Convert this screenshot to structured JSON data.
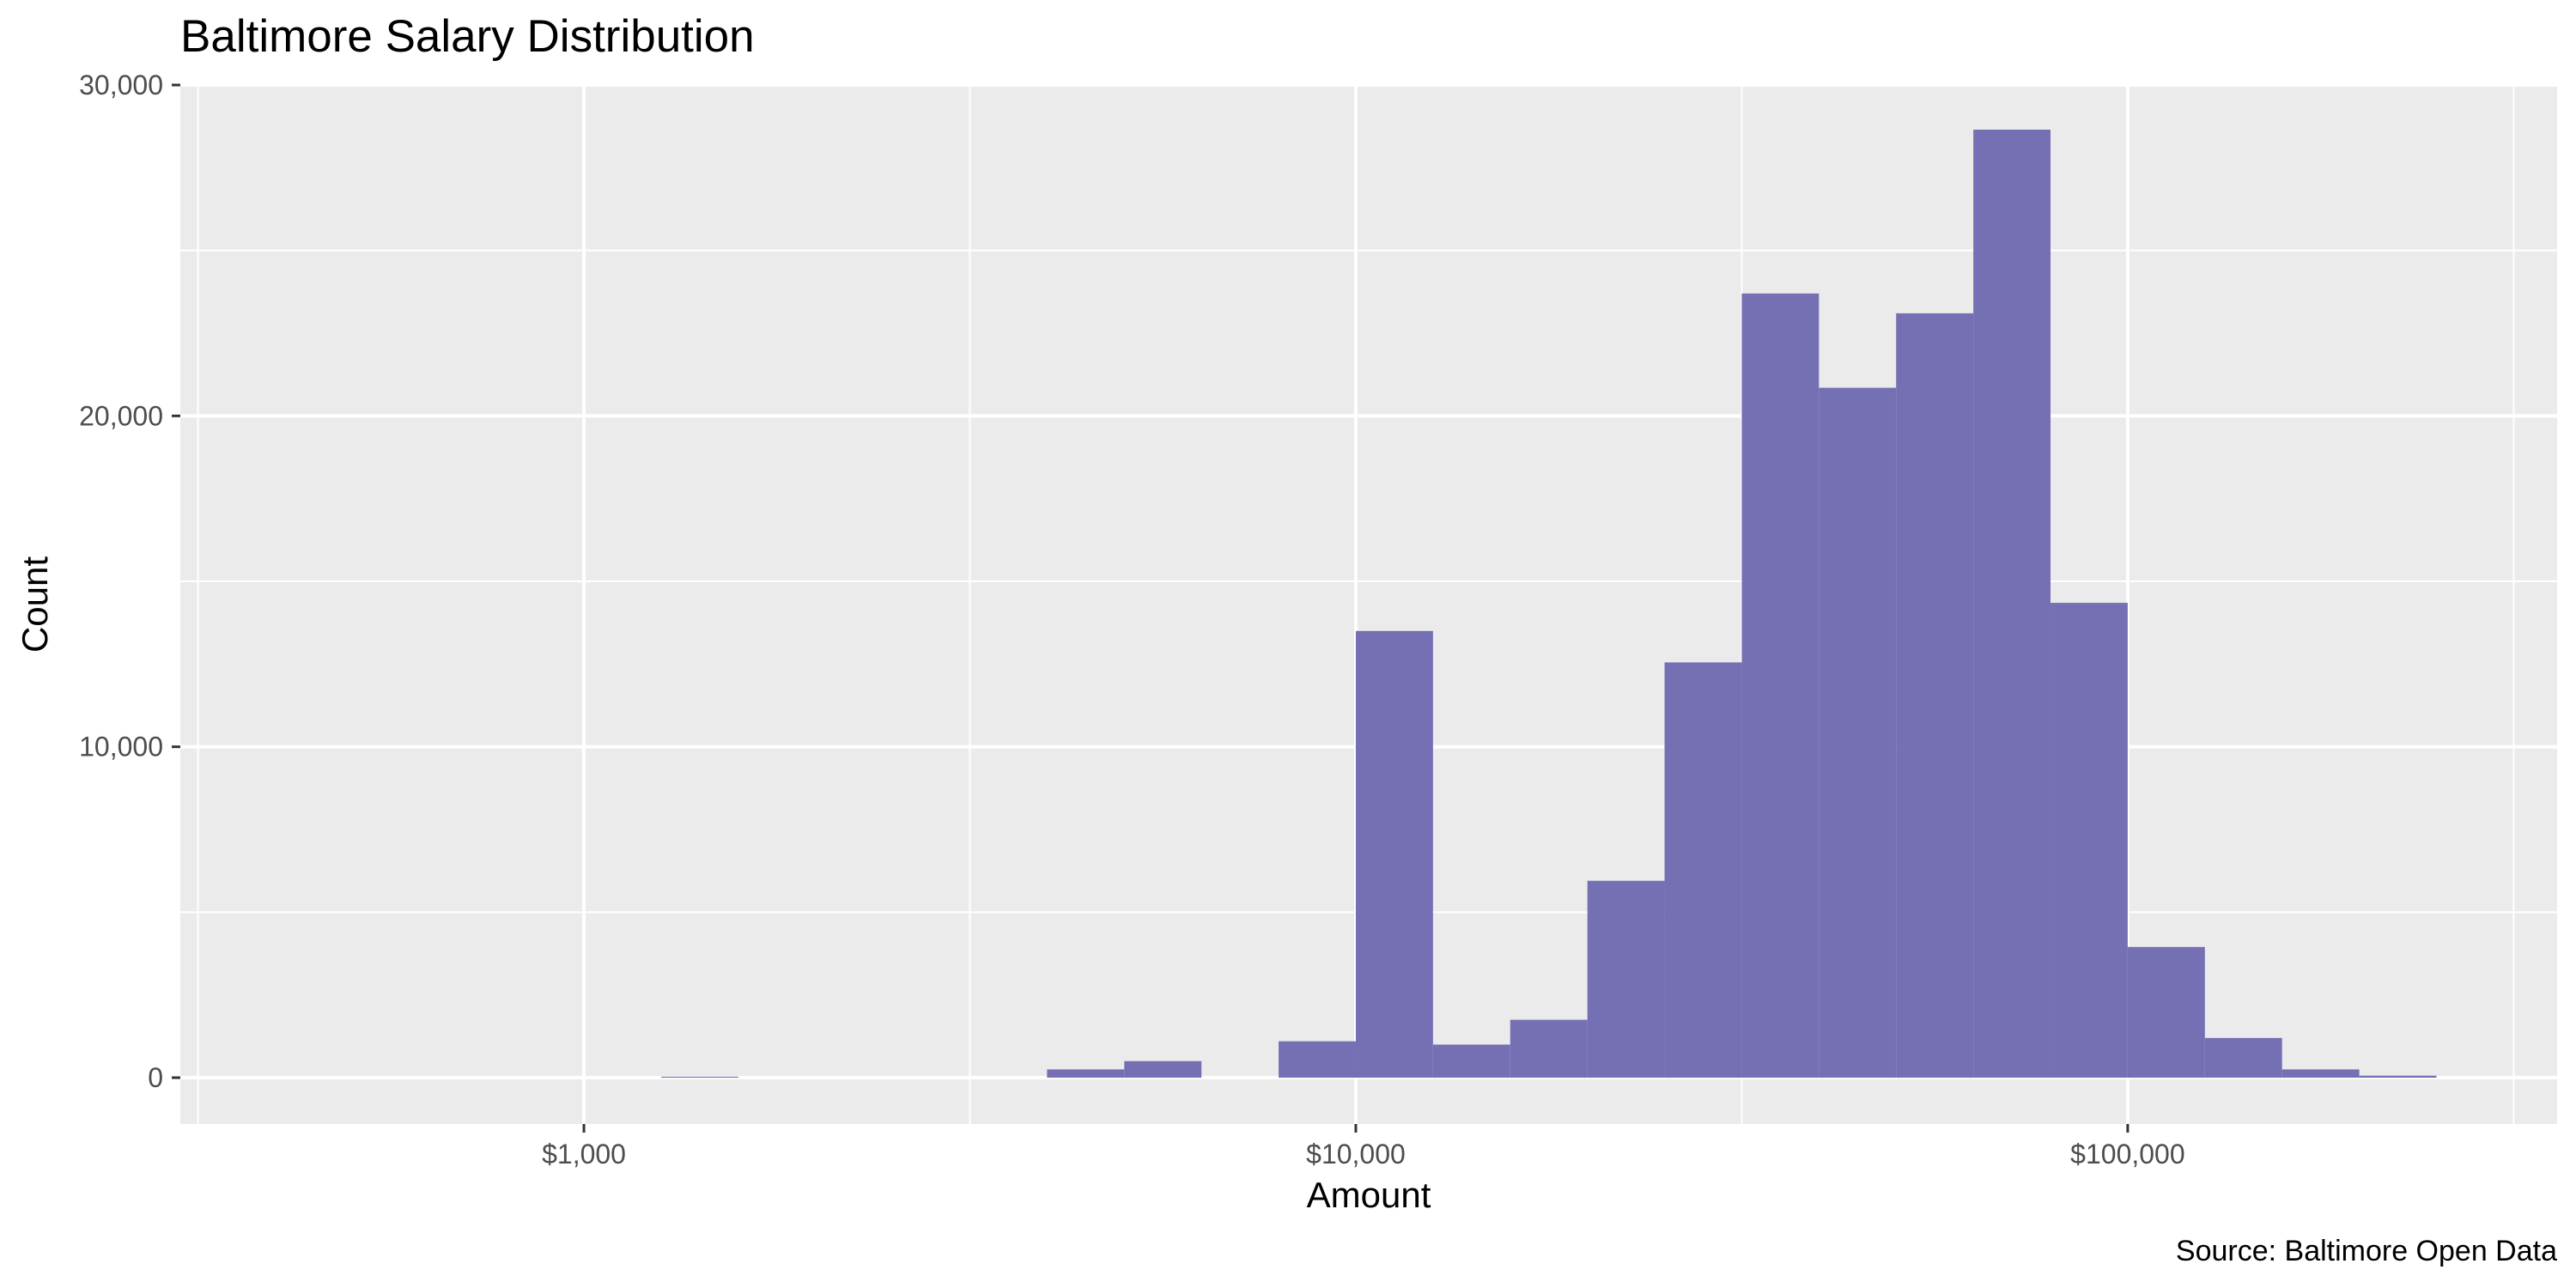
{
  "chart_data": {
    "type": "bar",
    "title": "Baltimore Salary Distribution",
    "xlabel": "Amount",
    "ylabel": "Count",
    "caption": "Source: Baltimore Open Data",
    "x_scale": "log10",
    "xlim": [
      300,
      360000
    ],
    "ylim": [
      -1400,
      30000
    ],
    "x_ticks": [
      {
        "value": 1000,
        "label": "$1,000"
      },
      {
        "value": 10000,
        "label": "$10,000"
      },
      {
        "value": 100000,
        "label": "$100,000"
      }
    ],
    "x_minor_ticks": [
      316.2,
      3162,
      31623,
      316228
    ],
    "y_ticks": [
      {
        "value": 0,
        "label": "0"
      },
      {
        "value": 10000,
        "label": "10,000"
      },
      {
        "value": 20000,
        "label": "20,000"
      },
      {
        "value": 30000,
        "label": "30,000"
      }
    ],
    "y_minor_ticks": [
      5000,
      15000,
      25000
    ],
    "bin_width_log10": 0.1,
    "bins": [
      {
        "x_start": 1259,
        "x_end": 1585,
        "count": 30
      },
      {
        "x_start": 3981,
        "x_end": 5012,
        "count": 250
      },
      {
        "x_start": 5012,
        "x_end": 6310,
        "count": 500
      },
      {
        "x_start": 7943,
        "x_end": 10000,
        "count": 1100
      },
      {
        "x_start": 10000,
        "x_end": 12589,
        "count": 13500
      },
      {
        "x_start": 12589,
        "x_end": 15849,
        "count": 1000
      },
      {
        "x_start": 15849,
        "x_end": 19953,
        "count": 1750
      },
      {
        "x_start": 19953,
        "x_end": 25119,
        "count": 5950
      },
      {
        "x_start": 25119,
        "x_end": 31623,
        "count": 12550
      },
      {
        "x_start": 31623,
        "x_end": 39811,
        "count": 23700
      },
      {
        "x_start": 39811,
        "x_end": 50119,
        "count": 20850
      },
      {
        "x_start": 50119,
        "x_end": 63096,
        "count": 23100
      },
      {
        "x_start": 63096,
        "x_end": 79433,
        "count": 28650
      },
      {
        "x_start": 79433,
        "x_end": 100000,
        "count": 14350
      },
      {
        "x_start": 100000,
        "x_end": 125893,
        "count": 3950
      },
      {
        "x_start": 125893,
        "x_end": 158489,
        "count": 1200
      },
      {
        "x_start": 158489,
        "x_end": 199526,
        "count": 250
      },
      {
        "x_start": 199526,
        "x_end": 251189,
        "count": 60
      }
    ],
    "colors": {
      "bar_fill": "#7570b3",
      "panel_background": "#ebebeb",
      "grid_line": "#ffffff",
      "tick_text": "#4d4d4d",
      "tick_mark": "#333333"
    },
    "grid": true,
    "legend": "none"
  }
}
